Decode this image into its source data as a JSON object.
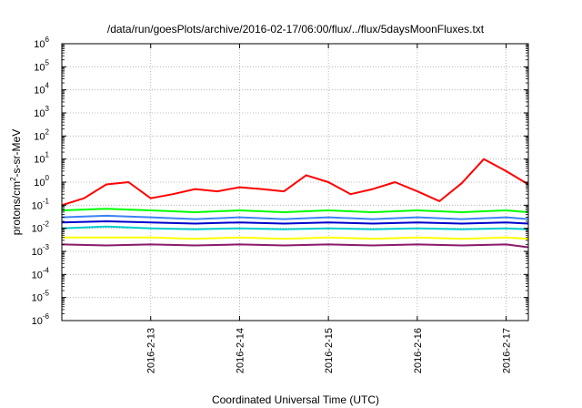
{
  "chart_data": {
    "type": "line",
    "title": "/data/run/goesPlots/archive/2016-02-17/06:00/flux/../flux/5daysMoonFluxes.txt",
    "xlabel": "Coordinated Universal Time (UTC)",
    "ylabel": {
      "base": "protons/cm",
      "sup": "2",
      "rest": "-s-sr-MeV"
    },
    "y_scale": "log",
    "ylim_exponents": [
      -6,
      6
    ],
    "y_tick_exponents": [
      -6,
      -5,
      -4,
      -3,
      -2,
      -1,
      0,
      1,
      2,
      3,
      4,
      5,
      6
    ],
    "x_ticks": [
      "2016-2-13",
      "2016-2-14",
      "2016-2-15",
      "2016-2-16",
      "2016-2-17"
    ],
    "xlim": [
      "2016-02-12T00:00",
      "2016-02-17T06:00"
    ],
    "grid": true,
    "legend": "none",
    "series": [
      {
        "color": "#ff0000",
        "x": [
          "2016-02-12T00:00",
          "2016-02-12T06:00",
          "2016-02-12T12:00",
          "2016-02-12T18:00",
          "2016-02-13T00:00",
          "2016-02-13T06:00",
          "2016-02-13T12:00",
          "2016-02-13T18:00",
          "2016-02-14T00:00",
          "2016-02-14T06:00",
          "2016-02-14T12:00",
          "2016-02-14T18:00",
          "2016-02-15T00:00",
          "2016-02-15T06:00",
          "2016-02-15T12:00",
          "2016-02-15T18:00",
          "2016-02-16T00:00",
          "2016-02-16T06:00",
          "2016-02-16T12:00",
          "2016-02-16T18:00",
          "2016-02-17T00:00",
          "2016-02-17T06:00"
        ],
        "y": [
          0.1,
          0.2,
          0.8,
          1.0,
          0.2,
          0.3,
          0.5,
          0.4,
          0.6,
          0.5,
          0.4,
          2.0,
          1.0,
          0.3,
          0.5,
          1.0,
          0.4,
          0.15,
          0.9,
          10.0,
          3.0,
          0.8
        ]
      },
      {
        "color": "#00ff00",
        "x": [
          "2016-02-12T00:00",
          "2016-02-12T12:00",
          "2016-02-13T00:00",
          "2016-02-13T12:00",
          "2016-02-14T00:00",
          "2016-02-14T12:00",
          "2016-02-15T00:00",
          "2016-02-15T12:00",
          "2016-02-16T00:00",
          "2016-02-16T12:00",
          "2016-02-17T00:00",
          "2016-02-17T06:00"
        ],
        "y": [
          0.06,
          0.07,
          0.06,
          0.05,
          0.06,
          0.05,
          0.06,
          0.05,
          0.06,
          0.05,
          0.06,
          0.05
        ]
      },
      {
        "color": "#3b82f6",
        "x": [
          "2016-02-12T00:00",
          "2016-02-12T12:00",
          "2016-02-13T00:00",
          "2016-02-13T12:00",
          "2016-02-14T00:00",
          "2016-02-14T12:00",
          "2016-02-15T00:00",
          "2016-02-15T12:00",
          "2016-02-16T00:00",
          "2016-02-16T12:00",
          "2016-02-17T00:00",
          "2016-02-17T06:00"
        ],
        "y": [
          0.03,
          0.035,
          0.03,
          0.025,
          0.03,
          0.025,
          0.03,
          0.025,
          0.03,
          0.025,
          0.03,
          0.025
        ]
      },
      {
        "color": "#0000cc",
        "x": [
          "2016-02-12T00:00",
          "2016-02-12T12:00",
          "2016-02-13T00:00",
          "2016-02-13T12:00",
          "2016-02-14T00:00",
          "2016-02-14T12:00",
          "2016-02-15T00:00",
          "2016-02-15T12:00",
          "2016-02-16T00:00",
          "2016-02-16T12:00",
          "2016-02-17T00:00",
          "2016-02-17T06:00"
        ],
        "y": [
          0.018,
          0.02,
          0.018,
          0.016,
          0.018,
          0.016,
          0.018,
          0.016,
          0.018,
          0.016,
          0.018,
          0.016
        ]
      },
      {
        "color": "#00cccc",
        "x": [
          "2016-02-12T00:00",
          "2016-02-12T12:00",
          "2016-02-13T00:00",
          "2016-02-13T12:00",
          "2016-02-14T00:00",
          "2016-02-14T12:00",
          "2016-02-15T00:00",
          "2016-02-15T12:00",
          "2016-02-16T00:00",
          "2016-02-16T12:00",
          "2016-02-17T00:00",
          "2016-02-17T06:00"
        ],
        "y": [
          0.01,
          0.012,
          0.01,
          0.009,
          0.01,
          0.009,
          0.01,
          0.009,
          0.01,
          0.009,
          0.01,
          0.009
        ]
      },
      {
        "color": "#ffff00",
        "x": [
          "2016-02-12T00:00",
          "2016-02-12T12:00",
          "2016-02-13T00:00",
          "2016-02-13T12:00",
          "2016-02-14T00:00",
          "2016-02-14T12:00",
          "2016-02-15T00:00",
          "2016-02-15T12:00",
          "2016-02-16T00:00",
          "2016-02-16T12:00",
          "2016-02-17T00:00",
          "2016-02-17T06:00"
        ],
        "y": [
          0.004,
          0.004,
          0.004,
          0.0035,
          0.004,
          0.0035,
          0.004,
          0.0035,
          0.004,
          0.0035,
          0.004,
          0.0035
        ]
      },
      {
        "color": "#8b1a6b",
        "x": [
          "2016-02-12T00:00",
          "2016-02-12T12:00",
          "2016-02-13T00:00",
          "2016-02-13T12:00",
          "2016-02-14T00:00",
          "2016-02-14T12:00",
          "2016-02-15T00:00",
          "2016-02-15T12:00",
          "2016-02-16T00:00",
          "2016-02-16T12:00",
          "2016-02-17T00:00",
          "2016-02-17T06:00"
        ],
        "y": [
          0.002,
          0.0018,
          0.002,
          0.0018,
          0.002,
          0.0018,
          0.002,
          0.0018,
          0.002,
          0.0018,
          0.002,
          0.0015
        ]
      }
    ]
  }
}
